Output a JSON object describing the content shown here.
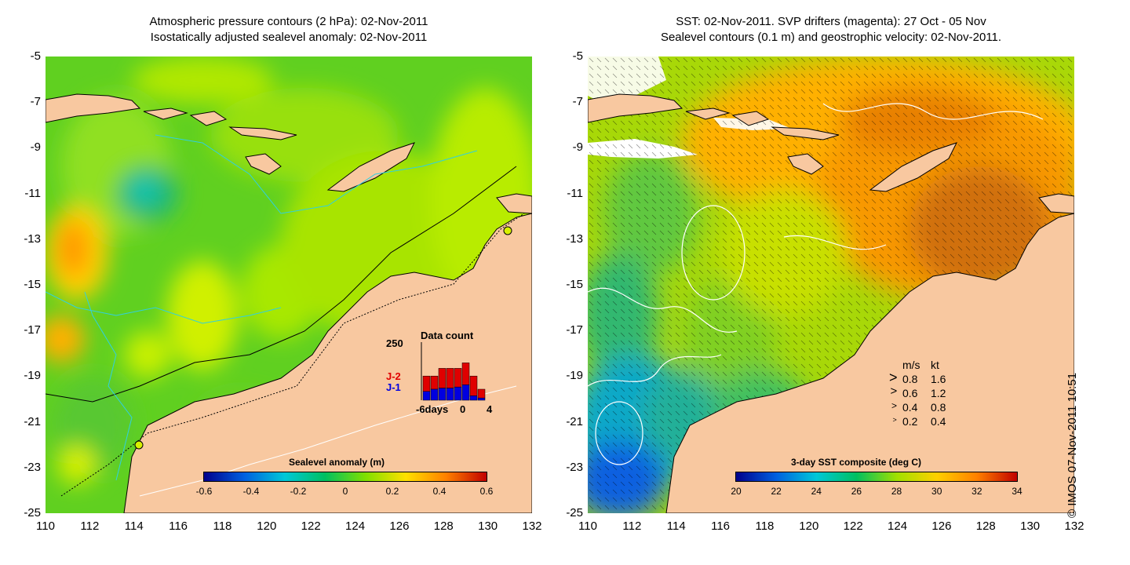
{
  "left_panel": {
    "title_line1": "Atmospheric pressure contours (2 hPa): 02-Nov-2011",
    "title_line2": "Isostatically adjusted sealevel anomaly: 02-Nov-2011",
    "colorbar": {
      "title": "Sealevel anomaly (m)",
      "labels": [
        "-0.6",
        "-0.4",
        "-0.2",
        "0",
        "0.2",
        "0.4",
        "0.6"
      ],
      "range": [
        -0.6,
        0.6
      ]
    },
    "data_count": {
      "title": "Data count",
      "y_max_label": "250",
      "series_labels": [
        {
          "name": "J-2",
          "color": "#e00000"
        },
        {
          "name": "J-1",
          "color": "#0000e0"
        }
      ],
      "x_labels": [
        "-6days",
        "0",
        "4"
      ],
      "bars": {
        "j1": [
          40,
          50,
          55,
          55,
          60,
          70,
          20,
          10
        ],
        "j2": [
          70,
          60,
          90,
          90,
          85,
          100,
          90,
          40
        ]
      }
    }
  },
  "right_panel": {
    "title_line1": "SST: 02-Nov-2011. SVP drifters (magenta): 27 Oct - 05 Nov",
    "title_line2": "Sealevel contours (0.1 m) and geostrophic velocity: 02-Nov-2011.",
    "colorbar": {
      "title": "3-day SST composite (deg C)",
      "labels": [
        "20",
        "22",
        "24",
        "26",
        "28",
        "30",
        "32",
        "34"
      ],
      "range": [
        20,
        34
      ]
    },
    "speed_legend": {
      "header_ms": "m/s",
      "header_kt": "kt",
      "rows": [
        {
          "ms": "0.8",
          "kt": "1.6"
        },
        {
          "ms": "0.6",
          "kt": "1.2"
        },
        {
          "ms": "0.4",
          "kt": "0.8"
        },
        {
          "ms": "0.2",
          "kt": "0.4"
        }
      ]
    }
  },
  "axes": {
    "y_labels": [
      "-5",
      "-7",
      "-9",
      "-11",
      "-13",
      "-15",
      "-17",
      "-19",
      "-21",
      "-23",
      "-25"
    ],
    "x_labels": [
      "110",
      "112",
      "114",
      "116",
      "118",
      "120",
      "122",
      "124",
      "126",
      "128",
      "130",
      "132"
    ],
    "lon_range": [
      110,
      132
    ],
    "lat_range": [
      -5,
      -25
    ]
  },
  "colors": {
    "land": "#f8c8a0",
    "sla_cmap": [
      "#00008c",
      "#0060e0",
      "#00c8d8",
      "#00c060",
      "#80e000",
      "#ffe000",
      "#ff8000",
      "#c00000"
    ],
    "sst_cmap": [
      "#00008c",
      "#0060e0",
      "#00c8d8",
      "#00c060",
      "#a0e000",
      "#ffd000",
      "#ff8000",
      "#c00000"
    ]
  },
  "copyright": "© IMOS 07-Nov-2011 10:51"
}
